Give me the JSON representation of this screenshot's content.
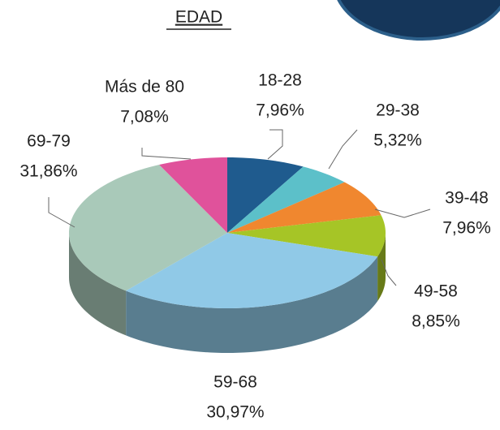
{
  "chart_data": {
    "type": "pie",
    "title": "EDAD",
    "categories": [
      "18-28",
      "29-38",
      "39-48",
      "49-58",
      "59-68",
      "69-79",
      "Más de 80"
    ],
    "values": [
      7.96,
      5.32,
      7.96,
      8.85,
      30.97,
      31.86,
      7.08
    ],
    "value_labels": [
      "7,96%",
      "5,32%",
      "7,96%",
      "8,85%",
      "30,97%",
      "31,86%",
      "7,08%"
    ],
    "colors": [
      "#1f5b8e",
      "#5cc0c9",
      "#f0872f",
      "#a6c526",
      "#90c9e7",
      "#a9c9b9",
      "#e0529b"
    ]
  }
}
